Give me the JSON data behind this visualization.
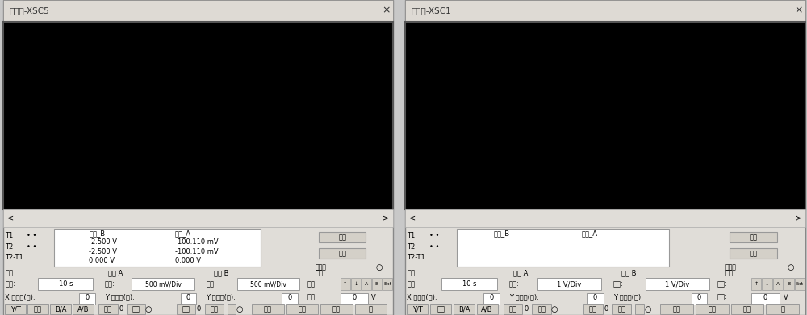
{
  "panel1_title": "示波器-XSC5",
  "panel2_title": "示波器-XSC1",
  "screen_bg": "#000000",
  "grid_color": "#333333",
  "axis_color": "#ffffff",
  "trace_color": "#b0b0b0",
  "panel_bg": "#c8c8c8",
  "title_bar_color": "#e0ddd8",
  "button_color": "#d4d0c8",
  "T1_B": "-2.500 V",
  "T1_A": "-100.110 mV",
  "T2_B": "-2.500 V",
  "T2_A": "-100.110 mV",
  "T21_B": "0.000 V",
  "T21_A": "0.000 V",
  "range_val": "10 s",
  "chA_scale1": "500 mV/Div",
  "chB_scale1": "500 mV/Div",
  "chA_scale2": "1 V/Div",
  "chB_scale2": "1 V/Div",
  "label_shibasis": "时基",
  "label_tongdaoA": "通道 A",
  "label_tongdaoB": "通道 B",
  "label_chufa": "触发",
  "label_fangwei": "范围:",
  "label_kedu": "刻度:",
  "label_bianyuan": "边沿:",
  "label_fancxiang": "反向",
  "label_baocun": "保存",
  "label_waichu": "外触发",
  "label_tongdao_B": "通道_B",
  "label_tongdao_A": "通道_A",
  "label_T1": "T1",
  "label_T2": "T2",
  "label_T2T1": "T2-T1",
  "label_xt": "X 轴位移(格):",
  "label_yt": "Y 轴位移(格):",
  "label_shuiping": "水平:",
  "label_YT": "Y/T",
  "label_tianjia": "添加",
  "label_BA": "B/A",
  "label_AB": "A/B",
  "label_jiaoliu": "交流",
  "label_zhiliu": "直流",
  "label_danci": "单次",
  "label_zhengchang": "正常",
  "label_zidong": "自动",
  "label_wu": "无",
  "label_V": "V"
}
